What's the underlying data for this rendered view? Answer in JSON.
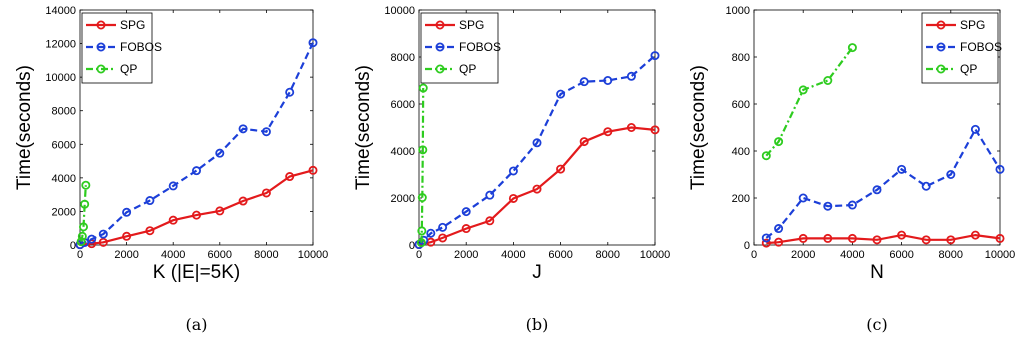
{
  "chart_data": [
    {
      "type": "line",
      "panel": "a",
      "caption": "(a)",
      "xlabel": "K (|E|=5K)",
      "ylabel": "Time(seconds)",
      "xlim": [
        0,
        10000
      ],
      "ylim": [
        0,
        14000
      ],
      "xticks": [
        0,
        2000,
        4000,
        6000,
        8000,
        10000
      ],
      "yticks": [
        0,
        2000,
        4000,
        6000,
        8000,
        10000,
        12000,
        14000
      ],
      "legend_position": "top-left",
      "series": [
        {
          "name": "SPG",
          "color": "#e31a1c",
          "style": "solid",
          "x": [
            0,
            500,
            1000,
            2000,
            3000,
            4000,
            5000,
            6000,
            7000,
            8000,
            9000,
            10000
          ],
          "y": [
            20,
            80,
            160,
            520,
            850,
            1480,
            1780,
            2030,
            2620,
            3100,
            4080,
            4450
          ]
        },
        {
          "name": "FOBOS",
          "color": "#1c3fd8",
          "style": "dashed",
          "x": [
            0,
            200,
            500,
            1000,
            2000,
            3000,
            4000,
            5000,
            6000,
            7000,
            8000,
            9000,
            10000
          ],
          "y": [
            20,
            150,
            350,
            650,
            1950,
            2650,
            3520,
            4430,
            5470,
            6920,
            6750,
            9100,
            12050
          ]
        },
        {
          "name": "QP",
          "color": "#2ecc1f",
          "style": "dashdot",
          "x": [
            50,
            100,
            150,
            200,
            250
          ],
          "y": [
            200,
            520,
            1080,
            2430,
            3560
          ]
        }
      ]
    },
    {
      "type": "line",
      "panel": "b",
      "caption": "(b)",
      "xlabel": "J",
      "ylabel": "Time(seconds)",
      "xlim": [
        0,
        10000
      ],
      "ylim": [
        0,
        10000
      ],
      "xticks": [
        0,
        2000,
        4000,
        6000,
        8000,
        10000
      ],
      "yticks": [
        0,
        2000,
        4000,
        6000,
        8000,
        10000
      ],
      "legend_position": "top-left",
      "series": [
        {
          "name": "SPG",
          "color": "#e31a1c",
          "style": "solid",
          "x": [
            0,
            500,
            1000,
            2000,
            3000,
            4000,
            5000,
            6000,
            7000,
            8000,
            9000,
            10000
          ],
          "y": [
            20,
            120,
            300,
            700,
            1030,
            1980,
            2380,
            3230,
            4400,
            4820,
            5000,
            4900
          ]
        },
        {
          "name": "FOBOS",
          "color": "#1c3fd8",
          "style": "dashed",
          "x": [
            0,
            200,
            500,
            1000,
            2000,
            3000,
            4000,
            5000,
            6000,
            7000,
            8000,
            9000,
            10000
          ],
          "y": [
            20,
            200,
            500,
            750,
            1420,
            2120,
            3150,
            4350,
            6420,
            6950,
            7000,
            7180,
            8060
          ]
        },
        {
          "name": "QP",
          "color": "#2ecc1f",
          "style": "dashdot",
          "x": [
            100,
            120,
            140,
            160,
            180
          ],
          "y": [
            100,
            600,
            2020,
            4050,
            6680
          ]
        }
      ]
    },
    {
      "type": "line",
      "panel": "c",
      "caption": "(c)",
      "xlabel": "N",
      "ylabel": "Time(seconds)",
      "xlim": [
        0,
        10000
      ],
      "ylim": [
        0,
        1000
      ],
      "xticks": [
        0,
        2000,
        4000,
        6000,
        8000,
        10000
      ],
      "yticks": [
        0,
        200,
        400,
        600,
        800,
        1000
      ],
      "legend_position": "top-right",
      "series": [
        {
          "name": "SPG",
          "color": "#e31a1c",
          "style": "solid",
          "x": [
            500,
            1000,
            2000,
            3000,
            4000,
            5000,
            6000,
            7000,
            8000,
            9000,
            10000
          ],
          "y": [
            8,
            12,
            28,
            28,
            28,
            22,
            42,
            22,
            22,
            42,
            28
          ]
        },
        {
          "name": "FOBOS",
          "color": "#1c3fd8",
          "style": "dashed",
          "x": [
            500,
            1000,
            2000,
            3000,
            4000,
            5000,
            6000,
            7000,
            8000,
            9000,
            10000
          ],
          "y": [
            30,
            70,
            200,
            165,
            170,
            235,
            322,
            250,
            300,
            492,
            322
          ]
        },
        {
          "name": "QP",
          "color": "#2ecc1f",
          "style": "dashdot",
          "x": [
            500,
            1000,
            2000,
            3000,
            4000
          ],
          "y": [
            380,
            440,
            660,
            700,
            840
          ]
        }
      ]
    }
  ]
}
